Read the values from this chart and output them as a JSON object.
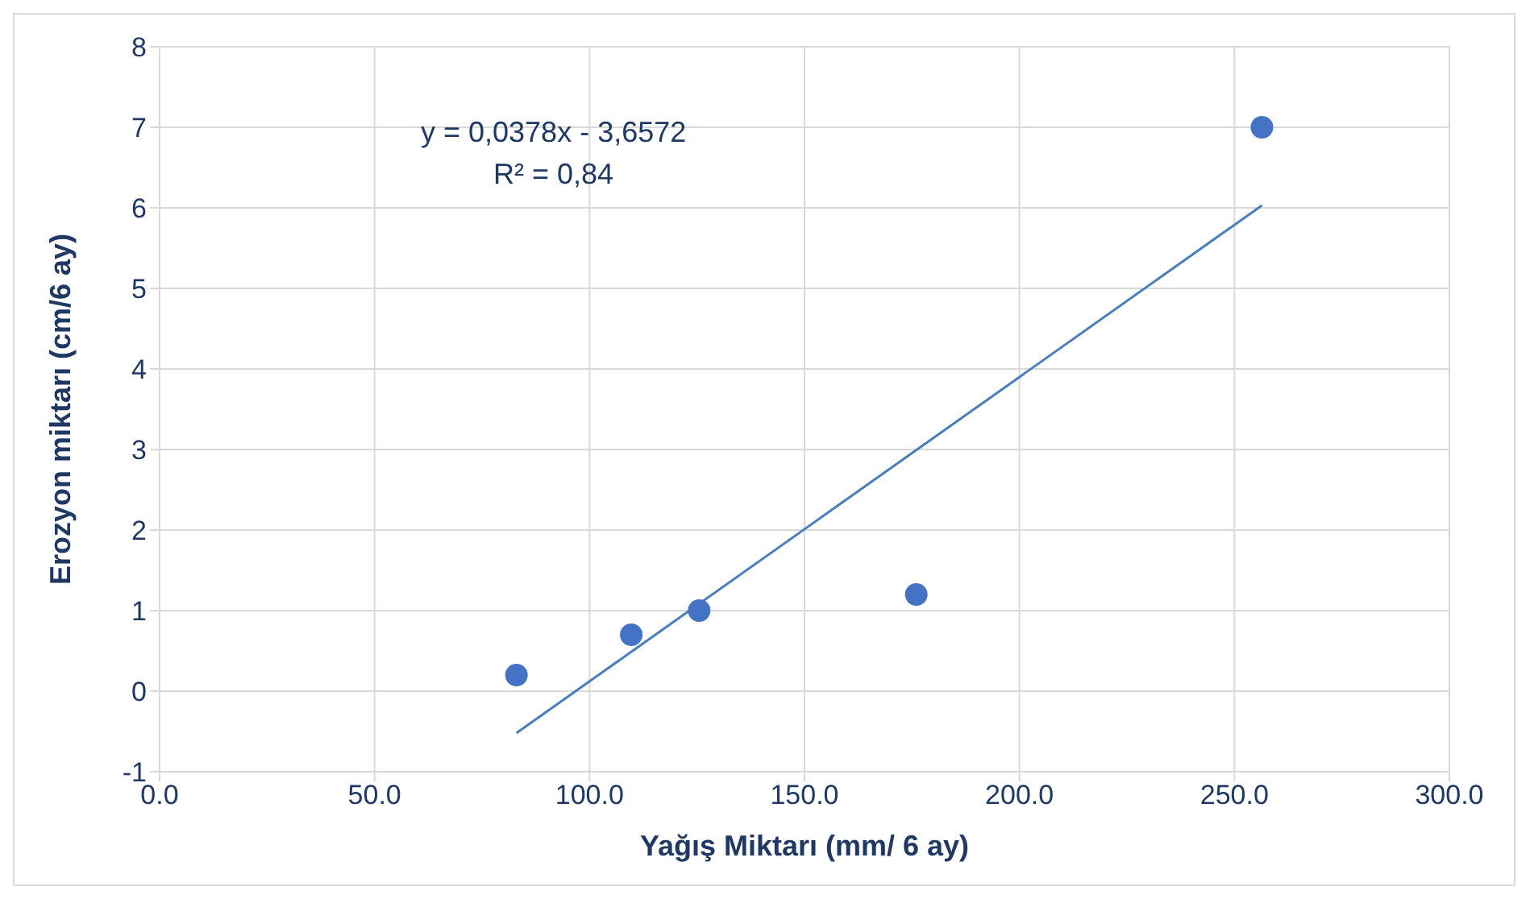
{
  "chart_data": {
    "type": "scatter",
    "xlabel": "Yağış Miktarı (mm/ 6 ay)",
    "ylabel": "Erozyon miktarı (cm/6 ay)",
    "annotations": [
      "y = 0,0378x - 3,6572",
      "R² = 0,84"
    ],
    "series": [
      {
        "color": "#4472c4",
        "marker": "circle",
        "x": [
          83,
          109.7,
          125.5,
          176,
          256.4
        ],
        "values": [
          0.2,
          0.7,
          1.0,
          1.2,
          7.0
        ]
      },
      {
        "type": "line",
        "color": "#4a7ebb",
        "line_style": "solid",
        "x": [
          83,
          256.4
        ],
        "values": [
          -0.52,
          6.03
        ]
      }
    ],
    "xlim": [
      0,
      300
    ],
    "xticks": [
      {
        "value": 0,
        "label": "0.0"
      },
      {
        "value": 50,
        "label": "50.0"
      },
      {
        "value": 100,
        "label": "100.0"
      },
      {
        "value": 150,
        "label": "150.0"
      },
      {
        "value": 200,
        "label": "200.0"
      },
      {
        "value": 250,
        "label": "250.0"
      },
      {
        "value": 300,
        "label": "300.0"
      }
    ],
    "ylim": [
      -1,
      8
    ],
    "yticks": [
      -1,
      0,
      1,
      2,
      3,
      4,
      5,
      6,
      7,
      8
    ],
    "grid": true
  }
}
